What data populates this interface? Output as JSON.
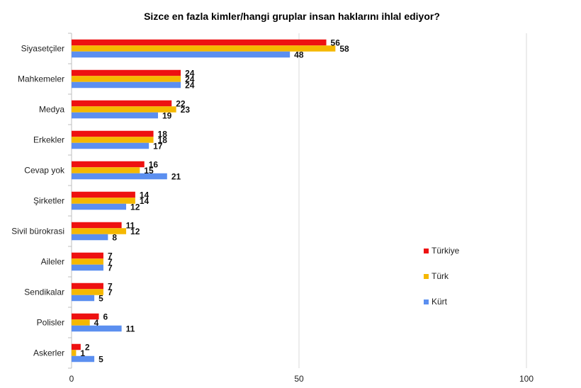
{
  "chart_data": {
    "type": "bar",
    "orientation": "horizontal",
    "title": "Sizce en fazla kimler/hangi gruplar insan haklarını ihlal ediyor?",
    "categories": [
      "Siyasetçiler",
      "Mahkemeler",
      "Medya",
      "Erkekler",
      "Cevap yok",
      "Şirketler",
      "Sivil bürokrasi",
      "Aileler",
      "Sendikalar",
      "Polisler",
      "Askerler"
    ],
    "series": [
      {
        "name": "Türkiye",
        "color": "#ee1111",
        "values": [
          56,
          24,
          22,
          18,
          16,
          14,
          11,
          7,
          7,
          6,
          2
        ]
      },
      {
        "name": "Türk",
        "color": "#f5b800",
        "values": [
          58,
          24,
          23,
          18,
          15,
          14,
          12,
          7,
          7,
          4,
          1
        ]
      },
      {
        "name": "Kürt",
        "color": "#5b8ff0",
        "values": [
          48,
          24,
          19,
          17,
          21,
          12,
          8,
          7,
          5,
          11,
          5
        ]
      }
    ],
    "xlim": [
      0,
      100
    ],
    "xticks": [
      0,
      50,
      100
    ],
    "grid": true,
    "legend_position": "right",
    "xlabel": "",
    "ylabel": ""
  }
}
